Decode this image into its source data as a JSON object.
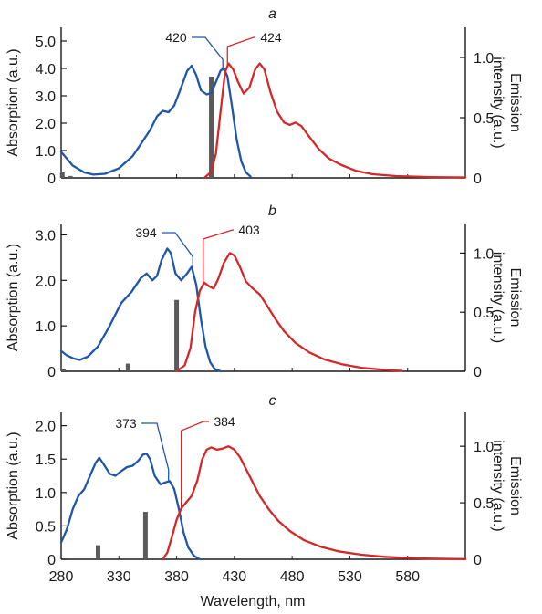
{
  "chart_data": [
    {
      "type": "line",
      "panel_label": "a",
      "xlim": [
        280,
        630
      ],
      "absorption_axis": {
        "label": "Absorption (a.u.)",
        "ylim": [
          0,
          5.5
        ],
        "ticks": [
          0,
          1.0,
          2.0,
          3.0,
          4.0,
          5.0
        ],
        "tick_labels": [
          "0",
          "1.0",
          "2.0",
          "3.0",
          "4.0",
          "5.0"
        ]
      },
      "emission_axis": {
        "label_line1": "Emission",
        "label_line2": "intensity (a.u.)",
        "ylim": [
          0,
          1.25
        ],
        "ticks": [
          0,
          0.5,
          1.0
        ],
        "tick_labels": [
          "0",
          "0.5",
          "1.0"
        ]
      },
      "peak_annotations": [
        {
          "text": "420",
          "series": "absorption",
          "x": 420,
          "y": 3.92
        },
        {
          "text": "424",
          "series": "emission",
          "x": 424,
          "y": 0.93
        }
      ],
      "series": [
        {
          "kind": "absorption",
          "color": "#1f57a8",
          "points": [
            [
              280,
              0.95
            ],
            [
              290,
              0.45
            ],
            [
              300,
              0.2
            ],
            [
              308,
              0.12
            ],
            [
              318,
              0.15
            ],
            [
              330,
              0.35
            ],
            [
              342,
              0.8
            ],
            [
              350,
              1.3
            ],
            [
              357,
              1.75
            ],
            [
              363,
              2.25
            ],
            [
              368,
              2.45
            ],
            [
              373,
              2.4
            ],
            [
              378,
              2.65
            ],
            [
              383,
              3.2
            ],
            [
              389,
              3.9
            ],
            [
              393,
              4.1
            ],
            [
              397,
              3.75
            ],
            [
              401,
              3.2
            ],
            [
              406,
              3.05
            ],
            [
              410,
              3.1
            ],
            [
              414,
              3.5
            ],
            [
              418,
              3.92
            ],
            [
              421,
              4.0
            ],
            [
              424,
              3.7
            ],
            [
              428,
              2.6
            ],
            [
              432,
              1.4
            ],
            [
              436,
              0.6
            ],
            [
              440,
              0.2
            ],
            [
              444,
              0.05
            ]
          ]
        },
        {
          "kind": "emission",
          "color": "#d42828",
          "points": [
            [
              404,
              0.0
            ],
            [
              410,
              0.05
            ],
            [
              414,
              0.2
            ],
            [
              418,
              0.55
            ],
            [
              422,
              0.88
            ],
            [
              425,
              0.95
            ],
            [
              429,
              0.9
            ],
            [
              433,
              0.8
            ],
            [
              438,
              0.7
            ],
            [
              443,
              0.75
            ],
            [
              448,
              0.9
            ],
            [
              452,
              0.95
            ],
            [
              456,
              0.9
            ],
            [
              461,
              0.72
            ],
            [
              467,
              0.55
            ],
            [
              473,
              0.46
            ],
            [
              478,
              0.44
            ],
            [
              483,
              0.46
            ],
            [
              488,
              0.43
            ],
            [
              495,
              0.34
            ],
            [
              503,
              0.24
            ],
            [
              512,
              0.16
            ],
            [
              522,
              0.11
            ],
            [
              535,
              0.06
            ],
            [
              550,
              0.03
            ],
            [
              570,
              0.015
            ],
            [
              600,
              0.007
            ],
            [
              630,
              0.004
            ]
          ]
        }
      ],
      "bars": [
        {
          "x": 281,
          "value": 0.2
        },
        {
          "x": 288,
          "value": 0.07
        },
        {
          "x": 410,
          "value": 3.7
        }
      ]
    },
    {
      "type": "line",
      "panel_label": "b",
      "xlim": [
        280,
        630
      ],
      "absorption_axis": {
        "label": "Absorption (a.u.)",
        "ylim": [
          0,
          3.25
        ],
        "ticks": [
          0,
          1.0,
          2.0,
          3.0
        ],
        "tick_labels": [
          "0",
          "1.0",
          "2.0",
          "3.0"
        ]
      },
      "emission_axis": {
        "label_line1": "Emission",
        "label_line2": "intensity (a.u.)",
        "ylim": [
          0,
          1.25
        ],
        "ticks": [
          0,
          0.5,
          1.0
        ],
        "tick_labels": [
          "0",
          "0.5",
          "1.0"
        ]
      },
      "peak_annotations": [
        {
          "text": "394",
          "series": "absorption",
          "x": 394,
          "y": 2.28
        },
        {
          "text": "403",
          "series": "emission",
          "x": 403,
          "y": 0.72
        }
      ],
      "series": [
        {
          "kind": "absorption",
          "color": "#1f57a8",
          "points": [
            [
              280,
              0.45
            ],
            [
              285,
              0.35
            ],
            [
              291,
              0.28
            ],
            [
              296,
              0.25
            ],
            [
              303,
              0.32
            ],
            [
              312,
              0.55
            ],
            [
              322,
              1.0
            ],
            [
              332,
              1.5
            ],
            [
              341,
              1.75
            ],
            [
              349,
              2.05
            ],
            [
              354,
              2.15
            ],
            [
              359,
              2.0
            ],
            [
              363,
              2.1
            ],
            [
              367,
              2.45
            ],
            [
              372,
              2.7
            ],
            [
              375,
              2.6
            ],
            [
              379,
              2.15
            ],
            [
              384,
              2.0
            ],
            [
              389,
              2.15
            ],
            [
              393,
              2.3
            ],
            [
              397,
              1.9
            ],
            [
              401,
              1.15
            ],
            [
              405,
              0.55
            ],
            [
              409,
              0.2
            ],
            [
              413,
              0.05
            ],
            [
              418,
              0.0
            ]
          ]
        },
        {
          "kind": "emission",
          "color": "#d42828",
          "points": [
            [
              380,
              0.0
            ],
            [
              387,
              0.05
            ],
            [
              392,
              0.2
            ],
            [
              396,
              0.5
            ],
            [
              400,
              0.68
            ],
            [
              404,
              0.75
            ],
            [
              408,
              0.72
            ],
            [
              412,
              0.7
            ],
            [
              416,
              0.78
            ],
            [
              421,
              0.92
            ],
            [
              426,
              1.0
            ],
            [
              430,
              0.98
            ],
            [
              435,
              0.88
            ],
            [
              440,
              0.76
            ],
            [
              446,
              0.7
            ],
            [
              452,
              0.65
            ],
            [
              458,
              0.56
            ],
            [
              465,
              0.45
            ],
            [
              473,
              0.34
            ],
            [
              483,
              0.24
            ],
            [
              495,
              0.16
            ],
            [
              508,
              0.1
            ],
            [
              523,
              0.06
            ],
            [
              540,
              0.03
            ],
            [
              560,
              0.012
            ],
            [
              575,
              0.004
            ]
          ]
        }
      ],
      "bars": [
        {
          "x": 282,
          "value": 0.04
        },
        {
          "x": 338,
          "value": 0.17
        },
        {
          "x": 380,
          "value": 1.57
        }
      ]
    },
    {
      "type": "line",
      "panel_label": "c",
      "xlim": [
        280,
        630
      ],
      "absorption_axis": {
        "label": "Absorption (a.u.)",
        "ylim": [
          0,
          2.2
        ],
        "ticks": [
          0,
          0.5,
          1.0,
          1.5,
          2.0
        ],
        "tick_labels": [
          "0",
          "0.5",
          "1.0",
          "1.5",
          "2.0"
        ]
      },
      "emission_axis": {
        "label_line1": "Emission",
        "label_line2": "intensity (a.u.)",
        "ylim": [
          0,
          1.3
        ],
        "ticks": [
          0,
          0.5,
          1.0
        ],
        "tick_labels": [
          "0",
          "0.5",
          "1.0"
        ]
      },
      "peak_annotations": [
        {
          "text": "373",
          "series": "absorption",
          "x": 373,
          "y": 1.18
        },
        {
          "text": "384",
          "series": "emission",
          "x": 384,
          "y": 0.45
        }
      ],
      "series": [
        {
          "kind": "absorption",
          "color": "#1f57a8",
          "points": [
            [
              280,
              0.25
            ],
            [
              285,
              0.45
            ],
            [
              290,
              0.75
            ],
            [
              295,
              0.95
            ],
            [
              300,
              1.05
            ],
            [
              305,
              1.25
            ],
            [
              310,
              1.45
            ],
            [
              313,
              1.52
            ],
            [
              317,
              1.42
            ],
            [
              322,
              1.28
            ],
            [
              327,
              1.25
            ],
            [
              332,
              1.32
            ],
            [
              337,
              1.38
            ],
            [
              342,
              1.4
            ],
            [
              347,
              1.48
            ],
            [
              351,
              1.57
            ],
            [
              354,
              1.58
            ],
            [
              357,
              1.5
            ],
            [
              361,
              1.25
            ],
            [
              366,
              1.12
            ],
            [
              370,
              1.15
            ],
            [
              374,
              1.17
            ],
            [
              378,
              1.05
            ],
            [
              382,
              0.75
            ],
            [
              386,
              0.4
            ],
            [
              390,
              0.18
            ],
            [
              395,
              0.05
            ],
            [
              400,
              0.0
            ]
          ]
        },
        {
          "kind": "emission",
          "color": "#d42828",
          "points": [
            [
              368,
              0.0
            ],
            [
              372,
              0.06
            ],
            [
              376,
              0.2
            ],
            [
              380,
              0.35
            ],
            [
              384,
              0.45
            ],
            [
              388,
              0.5
            ],
            [
              393,
              0.56
            ],
            [
              398,
              0.7
            ],
            [
              402,
              0.88
            ],
            [
              406,
              0.97
            ],
            [
              410,
              0.99
            ],
            [
              415,
              0.97
            ],
            [
              420,
              0.98
            ],
            [
              425,
              1.0
            ],
            [
              430,
              0.97
            ],
            [
              435,
              0.9
            ],
            [
              440,
              0.8
            ],
            [
              446,
              0.68
            ],
            [
              452,
              0.56
            ],
            [
              460,
              0.44
            ],
            [
              468,
              0.34
            ],
            [
              478,
              0.25
            ],
            [
              490,
              0.17
            ],
            [
              505,
              0.11
            ],
            [
              520,
              0.07
            ],
            [
              540,
              0.04
            ],
            [
              560,
              0.022
            ],
            [
              580,
              0.012
            ],
            [
              600,
              0.006
            ],
            [
              620,
              0.003
            ],
            [
              630,
              0.002
            ]
          ]
        }
      ],
      "bars": [
        {
          "x": 312,
          "value": 0.21
        },
        {
          "x": 353,
          "value": 0.71
        }
      ]
    }
  ],
  "x_axis": {
    "label": "Wavelength, nm",
    "ticks": [
      280,
      330,
      380,
      430,
      480,
      530,
      580
    ],
    "tick_labels": [
      "280",
      "330",
      "380",
      "430",
      "480",
      "530",
      "580"
    ]
  },
  "colors": {
    "absorption": "#1f57a8",
    "emission": "#d42828",
    "bars": "#5a5a5a",
    "axis": "#1a1a1a"
  }
}
